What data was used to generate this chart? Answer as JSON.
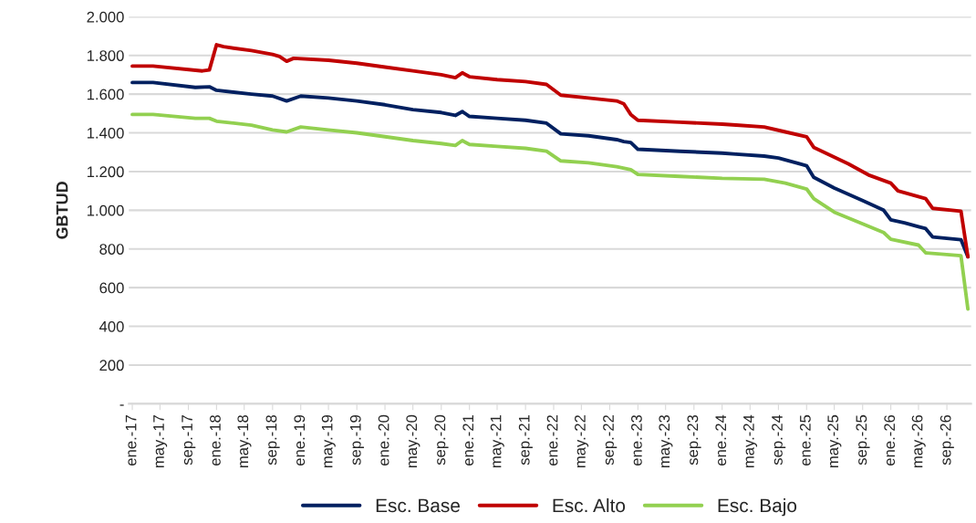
{
  "chart_data": {
    "type": "line",
    "ylabel": "GBTUD",
    "xlim": [
      "2016-12-17",
      "2026-12-15"
    ],
    "xticks": [
      {
        "value": "2017-01",
        "label": "ene.-17"
      },
      {
        "value": "2017-05",
        "label": "may.-17"
      },
      {
        "value": "2017-09",
        "label": "sep.-17"
      },
      {
        "value": "2018-01",
        "label": "ene.-18"
      },
      {
        "value": "2018-05",
        "label": "may.-18"
      },
      {
        "value": "2018-09",
        "label": "sep.-18"
      },
      {
        "value": "2019-01",
        "label": "ene.-19"
      },
      {
        "value": "2019-05",
        "label": "may.-19"
      },
      {
        "value": "2019-09",
        "label": "sep.-19"
      },
      {
        "value": "2020-01",
        "label": "ene.-20"
      },
      {
        "value": "2020-05",
        "label": "may.-20"
      },
      {
        "value": "2020-09",
        "label": "sep.-20"
      },
      {
        "value": "2021-01",
        "label": "ene.-21"
      },
      {
        "value": "2021-05",
        "label": "may.-21"
      },
      {
        "value": "2021-09",
        "label": "sep.-21"
      },
      {
        "value": "2022-01",
        "label": "ene.-22"
      },
      {
        "value": "2022-05",
        "label": "may.-22"
      },
      {
        "value": "2022-09",
        "label": "sep.-22"
      },
      {
        "value": "2023-01",
        "label": "ene.-23"
      },
      {
        "value": "2023-05",
        "label": "may.-23"
      },
      {
        "value": "2023-09",
        "label": "sep.-23"
      },
      {
        "value": "2024-01",
        "label": "ene.-24"
      },
      {
        "value": "2024-05",
        "label": "may.-24"
      },
      {
        "value": "2024-09",
        "label": "sep.-24"
      },
      {
        "value": "2025-01",
        "label": "ene.-25"
      },
      {
        "value": "2025-05",
        "label": "may.-25"
      },
      {
        "value": "2025-09",
        "label": "sep.-25"
      },
      {
        "value": "2026-01",
        "label": "ene.-26"
      },
      {
        "value": "2026-05",
        "label": "may.-26"
      },
      {
        "value": "2026-09",
        "label": "sep.-26"
      }
    ],
    "ylim": [
      0,
      2000
    ],
    "yticks": [
      {
        "value": 0,
        "label": "-"
      },
      {
        "value": 200,
        "label": "200"
      },
      {
        "value": 400,
        "label": "400"
      },
      {
        "value": 600,
        "label": "600"
      },
      {
        "value": 800,
        "label": "800"
      },
      {
        "value": 1000,
        "label": "1.000"
      },
      {
        "value": 1200,
        "label": "1.200"
      },
      {
        "value": 1400,
        "label": "1.400"
      },
      {
        "value": 1600,
        "label": "1.600"
      },
      {
        "value": 1800,
        "label": "1.800"
      },
      {
        "value": 2000,
        "label": "2.000"
      }
    ],
    "grid": "y",
    "legend": "bottom",
    "marker": "none",
    "line_style": "solid",
    "series": [
      {
        "name": "Esc. Base",
        "color": "#002060",
        "x": [
          "2017-01",
          "2017-04",
          "2017-10",
          "2017-12",
          "2018-01",
          "2018-06",
          "2018-09",
          "2018-11",
          "2019-01",
          "2019-05",
          "2019-09",
          "2020-01",
          "2020-05",
          "2020-09",
          "2020-11",
          "2020-12",
          "2021-01",
          "2021-05",
          "2021-09",
          "2021-12",
          "2022-02",
          "2022-06",
          "2022-10",
          "2022-11",
          "2022-12",
          "2023-01",
          "2023-07",
          "2024-01",
          "2024-03",
          "2024-07",
          "2024-09",
          "2024-12",
          "2025-01",
          "2025-02",
          "2025-05",
          "2025-09",
          "2025-12",
          "2026-01",
          "2026-03",
          "2026-05",
          "2026-06",
          "2026-07",
          "2026-11",
          "2026-12"
        ],
        "values": [
          1660,
          1660,
          1635,
          1638,
          1620,
          1600,
          1590,
          1565,
          1590,
          1580,
          1565,
          1545,
          1520,
          1505,
          1490,
          1510,
          1485,
          1475,
          1465,
          1450,
          1395,
          1385,
          1365,
          1355,
          1350,
          1315,
          1305,
          1295,
          1290,
          1280,
          1270,
          1240,
          1230,
          1170,
          1115,
          1050,
          1000,
          950,
          935,
          915,
          905,
          862,
          848,
          760
        ]
      },
      {
        "name": "Esc. Alto",
        "color": "#c00000",
        "x": [
          "2017-01",
          "2017-04",
          "2017-11",
          "2017-12",
          "2018-01",
          "2018-02",
          "2018-06",
          "2018-09",
          "2018-10",
          "2018-11",
          "2018-12",
          "2019-05",
          "2019-09",
          "2020-01",
          "2020-05",
          "2020-09",
          "2020-11",
          "2020-12",
          "2021-01",
          "2021-05",
          "2021-09",
          "2021-12",
          "2022-02",
          "2022-06",
          "2022-10",
          "2022-11",
          "2022-12",
          "2023-01",
          "2023-07",
          "2024-01",
          "2024-03",
          "2024-07",
          "2024-10",
          "2025-01",
          "2025-02",
          "2025-07",
          "2025-10",
          "2026-01",
          "2026-02",
          "2026-06",
          "2026-07",
          "2026-11",
          "2026-12"
        ],
        "values": [
          1745,
          1745,
          1720,
          1725,
          1855,
          1845,
          1825,
          1805,
          1795,
          1770,
          1785,
          1775,
          1760,
          1740,
          1720,
          1700,
          1685,
          1710,
          1690,
          1675,
          1665,
          1650,
          1595,
          1580,
          1565,
          1550,
          1495,
          1465,
          1455,
          1445,
          1440,
          1430,
          1405,
          1380,
          1325,
          1240,
          1180,
          1140,
          1100,
          1060,
          1010,
          995,
          760
        ]
      },
      {
        "name": "Esc. Bajo",
        "color": "#92d050",
        "x": [
          "2017-01",
          "2017-04",
          "2017-10",
          "2017-12",
          "2018-01",
          "2018-06",
          "2018-09",
          "2018-11",
          "2019-01",
          "2019-05",
          "2019-09",
          "2020-01",
          "2020-05",
          "2020-09",
          "2020-11",
          "2020-12",
          "2021-01",
          "2021-05",
          "2021-09",
          "2021-12",
          "2022-02",
          "2022-06",
          "2022-10",
          "2022-12",
          "2023-01",
          "2023-07",
          "2024-01",
          "2024-07",
          "2024-10",
          "2025-01",
          "2025-02",
          "2025-05",
          "2025-09",
          "2025-12",
          "2026-01",
          "2026-05",
          "2026-06",
          "2026-11",
          "2026-12"
        ],
        "values": [
          1495,
          1495,
          1475,
          1475,
          1460,
          1440,
          1415,
          1405,
          1430,
          1415,
          1400,
          1380,
          1360,
          1345,
          1335,
          1360,
          1340,
          1330,
          1320,
          1305,
          1255,
          1245,
          1225,
          1210,
          1185,
          1175,
          1165,
          1160,
          1140,
          1110,
          1060,
          990,
          930,
          885,
          850,
          820,
          780,
          765,
          490
        ]
      }
    ]
  }
}
